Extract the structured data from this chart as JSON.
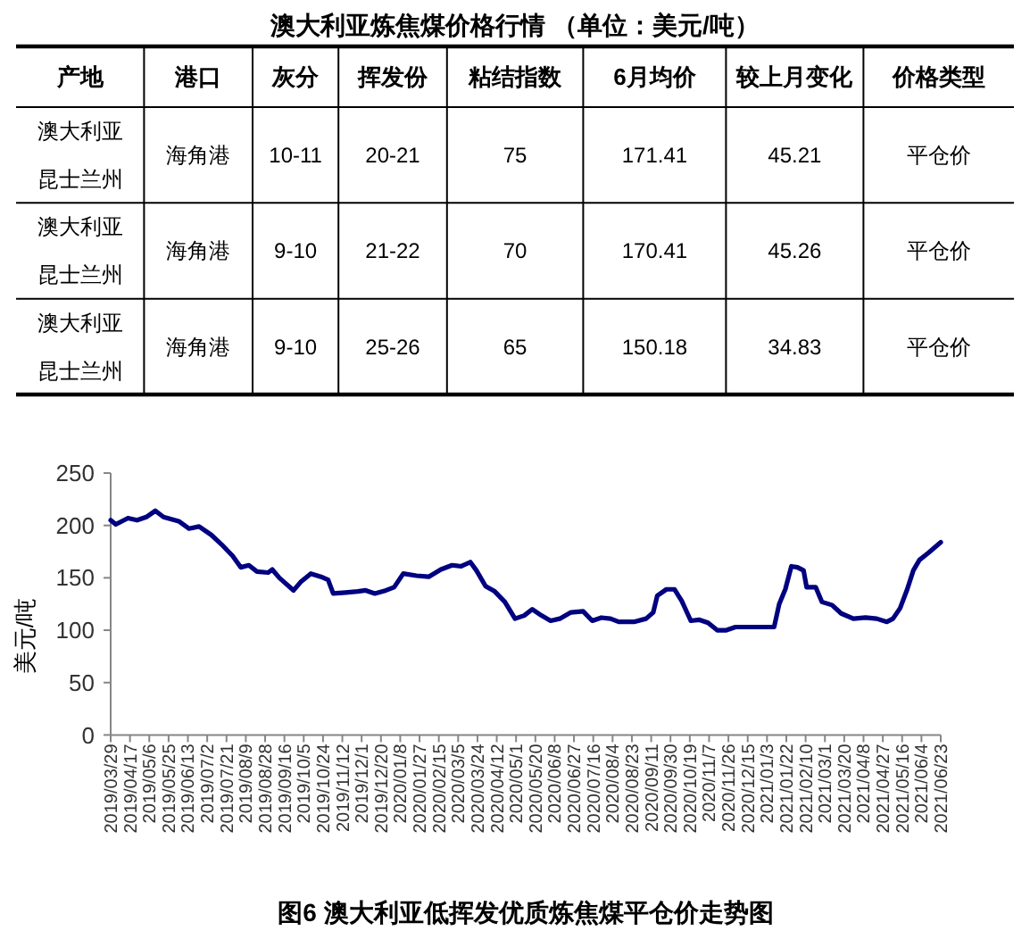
{
  "chart_data": [
    {
      "type": "other",
      "title": "澳大利亚炼焦煤价格行情 （单位：美元/吨）",
      "categories": [
        "产地",
        "港口",
        "灰分",
        "挥发份",
        "粘结指数",
        "6月均价",
        "较上月变化",
        "价格类型"
      ],
      "annotations": [
        "澳大利亚昆士兰州",
        "海角港",
        "10-11",
        "20-21",
        "75",
        "171.41",
        "45.21",
        "平仓价",
        "澳大利亚昆士兰州",
        "海角港",
        "9-10",
        "21-22",
        "70",
        "170.41",
        "45.26",
        "平仓价",
        "澳大利亚昆士兰州",
        "海角港",
        "9-10",
        "25-26",
        "65",
        "150.18",
        "34.83",
        "平仓价"
      ]
    },
    {
      "type": "line",
      "title": "图6 澳大利亚低挥发优质炼焦煤平仓价走势图",
      "ylabel": "美元/吨",
      "color": "#000080",
      "x": [
        "2019-03-29",
        "2019-04-03",
        "2019-04-15",
        "2019-04-24",
        "2019-05-03",
        "2019-05-12",
        "2019-05-20",
        "2019-06-04",
        "2019-06-14",
        "2019-06-24",
        "2019-07-06",
        "2019-07-16",
        "2019-07-27",
        "2019-08-04",
        "2019-08-12",
        "2019-08-20",
        "2019-08-31",
        "2019-09-04",
        "2019-09-11",
        "2019-09-25",
        "2019-10-02",
        "2019-10-12",
        "2019-10-22",
        "2019-10-29",
        "2019-11-03",
        "2019-11-15",
        "2019-11-27",
        "2019-12-05",
        "2019-12-14",
        "2019-12-25",
        "2020-01-02",
        "2020-01-11",
        "2020-01-24",
        "2020-02-05",
        "2020-02-17",
        "2020-02-28",
        "2020-03-08",
        "2020-03-17",
        "2020-03-23",
        "2020-04-01",
        "2020-04-10",
        "2020-04-20",
        "2020-04-30",
        "2020-05-09",
        "2020-05-17",
        "2020-05-26",
        "2020-06-04",
        "2020-06-13",
        "2020-06-24",
        "2020-07-06",
        "2020-07-15",
        "2020-07-24",
        "2020-08-02",
        "2020-08-10",
        "2020-08-25",
        "2020-09-06",
        "2020-09-13",
        "2020-09-17",
        "2020-09-26",
        "2020-10-04",
        "2020-10-11",
        "2020-10-20",
        "2020-10-28",
        "2020-11-06",
        "2020-11-15",
        "2020-11-24",
        "2020-12-03",
        "2020-12-17",
        "2020-12-29",
        "2021-01-10",
        "2021-01-15",
        "2021-01-21",
        "2021-01-27",
        "2021-02-02",
        "2021-02-08",
        "2021-02-11",
        "2021-02-20",
        "2021-02-26",
        "2021-03-08",
        "2021-03-17",
        "2021-03-29",
        "2021-04-10",
        "2021-04-21",
        "2021-05-01",
        "2021-05-07",
        "2021-05-14",
        "2021-05-21",
        "2021-05-27",
        "2021-06-02",
        "2021-06-11",
        "2021-06-23"
      ],
      "values": [
        205,
        201,
        207,
        205,
        208,
        214,
        208,
        204,
        197,
        199,
        191,
        182,
        171,
        160,
        162,
        156,
        155,
        158,
        150,
        138,
        146,
        154,
        151,
        148,
        135,
        136,
        137,
        138,
        135,
        138,
        141,
        154,
        152,
        151,
        158,
        162,
        161,
        165,
        157,
        142,
        137,
        127,
        111,
        114,
        120,
        114,
        109,
        111,
        117,
        118,
        109,
        112,
        111,
        108,
        108,
        111,
        117,
        133,
        139,
        139,
        128,
        109,
        110,
        107,
        100,
        100,
        103,
        103,
        103,
        103,
        125,
        139,
        161,
        160,
        157,
        141,
        141,
        127,
        124,
        116,
        111,
        112,
        111,
        108,
        111,
        121,
        139,
        157,
        167,
        174,
        184
      ],
      "xlim": [
        "2019-03-29",
        "2021-06-23"
      ],
      "xticks": [
        {
          "value": "2019-03-29",
          "label": "2019/03/29"
        },
        {
          "value": "2019-04-17",
          "label": "2019/04/17"
        },
        {
          "value": "2019-05-06",
          "label": "2019/05/6"
        },
        {
          "value": "2019-05-25",
          "label": "2019/05/25"
        },
        {
          "value": "2019-06-13",
          "label": "2019/06/13"
        },
        {
          "value": "2019-07-02",
          "label": "2019/07/2"
        },
        {
          "value": "2019-07-21",
          "label": "2019/07/21"
        },
        {
          "value": "2019-08-09",
          "label": "2019/08/9"
        },
        {
          "value": "2019-08-28",
          "label": "2019/08/28"
        },
        {
          "value": "2019-09-16",
          "label": "2019/09/16"
        },
        {
          "value": "2019-10-05",
          "label": "2019/10/5"
        },
        {
          "value": "2019-10-24",
          "label": "2019/10/24"
        },
        {
          "value": "2019-11-12",
          "label": "2019/11/12"
        },
        {
          "value": "2019-12-01",
          "label": "2019/12/1"
        },
        {
          "value": "2019-12-20",
          "label": "2019/12/20"
        },
        {
          "value": "2020-01-08",
          "label": "2020/01/8"
        },
        {
          "value": "2020-01-27",
          "label": "2020/01/27"
        },
        {
          "value": "2020-02-15",
          "label": "2020/02/15"
        },
        {
          "value": "2020-03-05",
          "label": "2020/03/5"
        },
        {
          "value": "2020-03-24",
          "label": "2020/03/24"
        },
        {
          "value": "2020-04-12",
          "label": "2020/04/12"
        },
        {
          "value": "2020-05-01",
          "label": "2020/05/1"
        },
        {
          "value": "2020-05-20",
          "label": "2020/05/20"
        },
        {
          "value": "2020-06-08",
          "label": "2020/06/8"
        },
        {
          "value": "2020-06-27",
          "label": "2020/06/27"
        },
        {
          "value": "2020-07-16",
          "label": "2020/07/16"
        },
        {
          "value": "2020-08-04",
          "label": "2020/08/4"
        },
        {
          "value": "2020-08-23",
          "label": "2020/08/23"
        },
        {
          "value": "2020-09-11",
          "label": "2020/09/11"
        },
        {
          "value": "2020-09-30",
          "label": "2020/09/30"
        },
        {
          "value": "2020-10-19",
          "label": "2020/10/19"
        },
        {
          "value": "2020-11-07",
          "label": "2020/11/7"
        },
        {
          "value": "2020-11-26",
          "label": "2020/11/26"
        },
        {
          "value": "2020-12-15",
          "label": "2020/12/15"
        },
        {
          "value": "2021-01-03",
          "label": "2021/01/3"
        },
        {
          "value": "2021-01-22",
          "label": "2021/01/22"
        },
        {
          "value": "2021-02-10",
          "label": "2021/02/10"
        },
        {
          "value": "2021-03-01",
          "label": "2021/03/1"
        },
        {
          "value": "2021-03-20",
          "label": "2021/03/20"
        },
        {
          "value": "2021-04-08",
          "label": "2021/04/8"
        },
        {
          "value": "2021-04-27",
          "label": "2021/04/27"
        },
        {
          "value": "2021-05-16",
          "label": "2021/05/16"
        },
        {
          "value": "2021-06-04",
          "label": "2021/06/4"
        },
        {
          "value": "2021-06-23",
          "label": "2021/06/23"
        }
      ],
      "ylim": [
        0,
        250
      ],
      "yticks": [
        0,
        50,
        100,
        150,
        200,
        250
      ]
    }
  ]
}
